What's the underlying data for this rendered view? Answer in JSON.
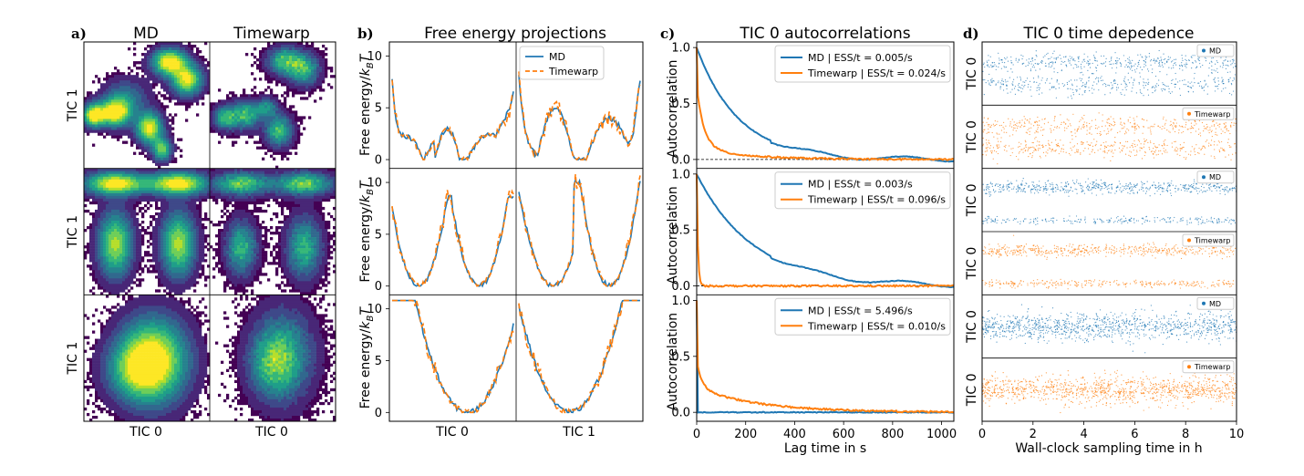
{
  "panel_labels": [
    "a)",
    "b)",
    "c)",
    "d)"
  ],
  "colors": {
    "md": "#1f77b4",
    "timewarp": "#ff7f0e"
  },
  "chart_data": [
    {
      "id": "a",
      "type": "heatmap",
      "columns": [
        "MD",
        "Timewarp"
      ],
      "ylabel": "TIC 1",
      "xlabels": [
        "TIC 0",
        "TIC 0"
      ],
      "rows": 3,
      "colormap": "viridis",
      "ticks": "none"
    },
    {
      "id": "b",
      "type": "line",
      "title": "Free energy projections",
      "ylabel": "Free energy/k_BT",
      "ylabel_main": "Free energy/",
      "ylabel_k": "k",
      "ylabel_sub": "B",
      "ylabel_T": "T",
      "xlabels": [
        "TIC 0",
        "TIC 1"
      ],
      "legend": [
        "MD",
        "Timewarp"
      ],
      "yticks": [
        [
          "0",
          "5",
          "10"
        ],
        [
          "0",
          "5",
          "10"
        ],
        [
          "0",
          "5",
          "10"
        ]
      ],
      "ylim": [
        -0.5,
        11
      ]
    },
    {
      "id": "c",
      "type": "line",
      "title": "TIC 0 autocorrelations",
      "ylabel": "Autocorrelation",
      "xlabel": "Lag time in s",
      "xticks": [
        "0",
        "200",
        "400",
        "600",
        "800",
        "1000"
      ],
      "xlim": [
        0,
        1050
      ],
      "yticks": [
        "0.0",
        "0.5",
        "1.0"
      ],
      "ylim": [
        -0.08,
        1.05
      ],
      "panels": [
        {
          "legend": [
            "MD | ESS/t = 0.005/s",
            "Timewarp | ESS/t = 0.024/s"
          ],
          "md_tau": 170,
          "tw_tau": 30,
          "tw_amp": 0.55,
          "tw_tail_amp": 0.1,
          "tw_tail_tau": 200
        },
        {
          "legend": [
            "MD | ESS/t = 0.003/s",
            "Timewarp | ESS/t = 0.096/s"
          ],
          "md_tau": 230,
          "tw_tau": 5,
          "tw_amp": 0.95,
          "tw_tail_amp": 0.0,
          "tw_tail_tau": 100
        },
        {
          "legend": [
            "MD | ESS/t = 5.496/s",
            "Timewarp | ESS/t = 0.010/s"
          ],
          "md_tau": 0.5,
          "tw_tau": 20,
          "tw_amp": 0.25,
          "tw_tail_amp": 0.22,
          "tw_tail_tau": 250
        }
      ]
    },
    {
      "id": "d",
      "type": "scatter",
      "title": "TIC 0 time depedence",
      "ylabel": "TIC 0",
      "xlabel": "Wall-clock sampling time in h",
      "xticks": [
        "0",
        "2",
        "4",
        "6",
        "8",
        "10"
      ],
      "xlim": [
        0,
        10
      ],
      "series_order": [
        "MD",
        "Timewarp",
        "MD",
        "Timewarp",
        "MD",
        "Timewarp"
      ]
    }
  ]
}
